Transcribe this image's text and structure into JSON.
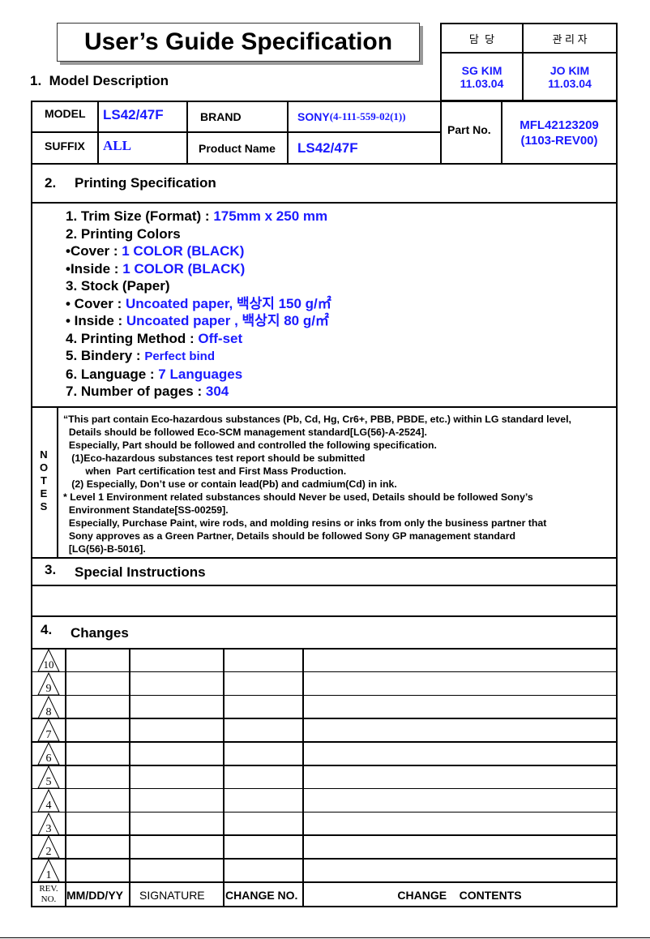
{
  "title": "User’s Guide Specification",
  "approval": {
    "headers": [
      "담  당",
      "관 리 자"
    ],
    "names": [
      "SG KIM",
      "JO KIM"
    ],
    "dates": [
      "11.03.04",
      "11.03.04"
    ]
  },
  "section1": {
    "title": "1.  Model Description"
  },
  "model": {
    "model_label": "MODEL",
    "model_value": "LS42/47F",
    "brand_label": "BRAND",
    "brand_value": "SONY",
    "brand_code": "(4-111-559-02(1))",
    "suffix_label": "SUFFIX",
    "suffix_value": "ALL",
    "product_label": "Product Name",
    "product_value": "LS42/47F",
    "part_label": "Part No.",
    "part_value": "MFL42123209",
    "part_rev": "(1103-REV00)"
  },
  "section2": {
    "num": "2.",
    "title": "Printing Specification"
  },
  "spec": [
    {
      "label": "1. Trim Size (Format) : ",
      "value": "175mm x 250 mm"
    },
    {
      "label": "2. Printing Colors",
      "value": ""
    },
    {
      "label": "•Cover : ",
      "value": "1 COLOR (BLACK)"
    },
    {
      "label": "•Inside : ",
      "value": "1 COLOR (BLACK)"
    },
    {
      "label": "3. Stock (Paper)",
      "value": ""
    },
    {
      "label": "• Cover : ",
      "value": "Uncoated paper, 백상지 150 g/㎡"
    },
    {
      "label": "• Inside : ",
      "value": "Uncoated paper , 백상지 80 g/㎡"
    },
    {
      "label": "4. Printing Method : ",
      "value": "Off-set"
    },
    {
      "label": "5. Bindery  : ",
      "value": "Perfect bind"
    },
    {
      "label": "6. Language : ",
      "value": "7 Languages"
    },
    {
      "label": "7. Number of pages : ",
      "value": "304"
    }
  ],
  "notes": {
    "label": "NOTES",
    "lines": [
      "“This part contain Eco-hazardous substances (Pb, Cd, Hg, Cr6+, PBB, PBDE, etc.) within LG standard level,",
      "  Details should be followed Eco-SCM management standard[LG(56)-A-2524].",
      "  Especially, Part should be followed and controlled the following specification.",
      "   (1)Eco-hazardous substances test report should be submitted",
      "        when  Part certification test and First Mass Production.",
      "   (2) Especially, Don’t use or contain lead(Pb) and cadmium(Cd) in ink.",
      "* Level 1 Environment related substances should Never be used, Details should be followed Sony’s",
      "  Environment Standate[SS-00259].",
      "  Especially, Purchase Paint, wire rods, and molding resins or inks from only the business partner that",
      "  Sony approves as a Green Partner, Details should be followed Sony GP management standard",
      "  [LG(56)-B-5016]."
    ]
  },
  "section3": {
    "num": "3.",
    "title": "Special Instructions"
  },
  "section4": {
    "num": "4.",
    "title": "Changes"
  },
  "changes": {
    "revs": [
      "10",
      "9",
      "8",
      "7",
      "6",
      "5",
      "4",
      "3",
      "2",
      "1"
    ],
    "footer": {
      "rev": "REV.",
      "no": "NO.",
      "date": "MM/DD/YY",
      "signature": "SIGNATURE",
      "change_no": "CHANGE NO.",
      "contents": "CHANGE    CONTENTS"
    }
  }
}
